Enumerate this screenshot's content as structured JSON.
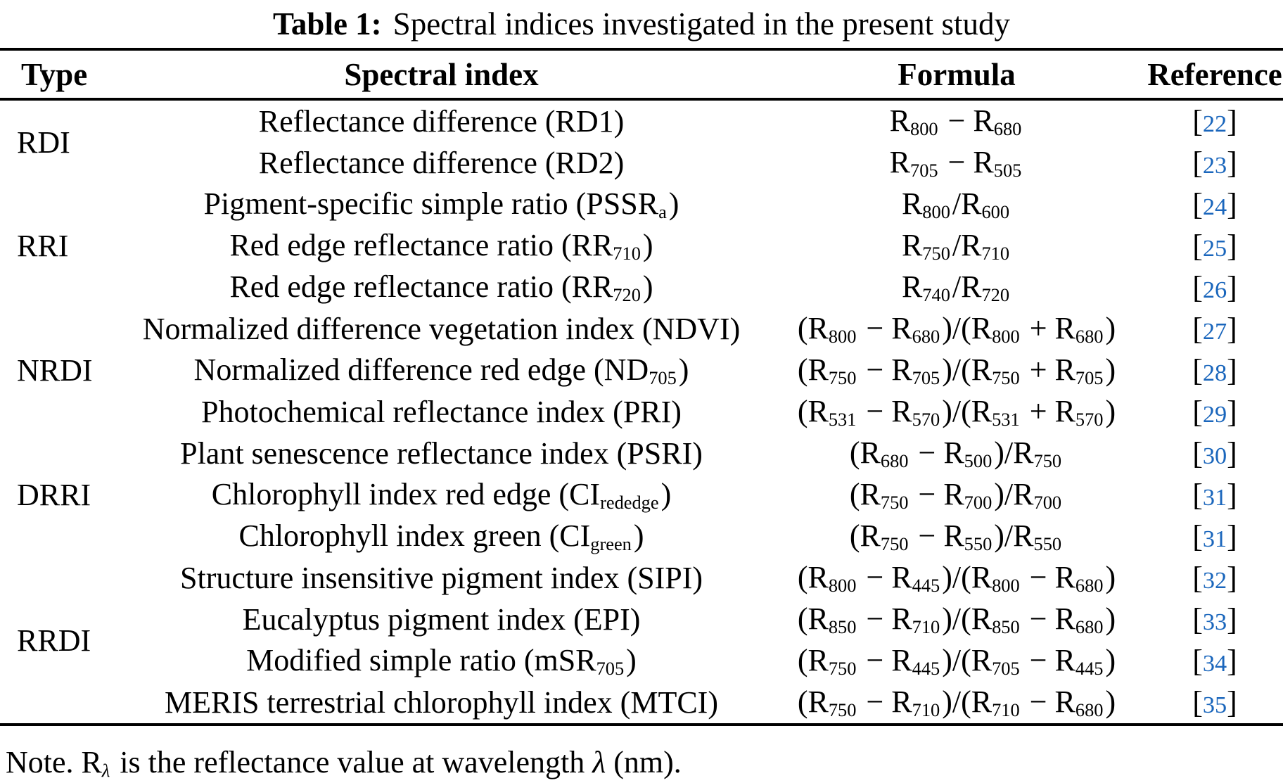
{
  "caption": {
    "label": "Table 1:",
    "text": "Spectral indices investigated in the present study"
  },
  "columns": [
    "Type",
    "Spectral index",
    "Formula",
    "Reference"
  ],
  "colors": {
    "citation_link": "#1a66bc",
    "text": "#000000",
    "rule": "#000000"
  },
  "groups": [
    {
      "type": "RDI",
      "rows": [
        {
          "name": [
            [
              "t",
              "Reflectance difference (RD1)"
            ]
          ],
          "formula": [
            [
              "t",
              "R"
            ],
            [
              "s",
              "800"
            ],
            [
              "t",
              " − R"
            ],
            [
              "s",
              "680"
            ]
          ],
          "cite": [
            [
              "t",
              "["
            ],
            [
              "r",
              "22"
            ],
            [
              "t",
              "]"
            ]
          ]
        },
        {
          "name": [
            [
              "t",
              "Reflectance difference (RD2)"
            ]
          ],
          "formula": [
            [
              "t",
              "R"
            ],
            [
              "s",
              "705"
            ],
            [
              "t",
              " − R"
            ],
            [
              "s",
              "505"
            ]
          ],
          "cite": [
            [
              "t",
              "["
            ],
            [
              "r",
              "23"
            ],
            [
              "t",
              "]"
            ]
          ]
        }
      ]
    },
    {
      "type": "RRI",
      "rows": [
        {
          "name": [
            [
              "t",
              "Pigment-specific simple ratio (PSSR"
            ],
            [
              "s",
              "a"
            ],
            [
              "t",
              ")"
            ]
          ],
          "formula": [
            [
              "t",
              "R"
            ],
            [
              "s",
              "800"
            ],
            [
              "t",
              "/R"
            ],
            [
              "s",
              "600"
            ]
          ],
          "cite": [
            [
              "t",
              "["
            ],
            [
              "r",
              "24"
            ],
            [
              "t",
              "]"
            ]
          ]
        },
        {
          "name": [
            [
              "t",
              "Red edge reflectance ratio (RR"
            ],
            [
              "s",
              "710"
            ],
            [
              "t",
              ")"
            ]
          ],
          "formula": [
            [
              "t",
              "R"
            ],
            [
              "s",
              "750"
            ],
            [
              "t",
              "/R"
            ],
            [
              "s",
              "710"
            ]
          ],
          "cite": [
            [
              "t",
              "["
            ],
            [
              "r",
              "25"
            ],
            [
              "t",
              "]"
            ]
          ]
        },
        {
          "name": [
            [
              "t",
              "Red edge reflectance ratio (RR"
            ],
            [
              "s",
              "720"
            ],
            [
              "t",
              ")"
            ]
          ],
          "formula": [
            [
              "t",
              "R"
            ],
            [
              "s",
              "740"
            ],
            [
              "t",
              "/R"
            ],
            [
              "s",
              "720"
            ]
          ],
          "cite": [
            [
              "t",
              "["
            ],
            [
              "r",
              "26"
            ],
            [
              "t",
              "]"
            ]
          ]
        }
      ]
    },
    {
      "type": "NRDI",
      "rows": [
        {
          "name": [
            [
              "t",
              "Normalized difference vegetation index (NDVI)"
            ]
          ],
          "formula": [
            [
              "t",
              "(R"
            ],
            [
              "s",
              "800"
            ],
            [
              "t",
              " − R"
            ],
            [
              "s",
              "680"
            ],
            [
              "t",
              ")/(R"
            ],
            [
              "s",
              "800"
            ],
            [
              "t",
              " + R"
            ],
            [
              "s",
              "680"
            ],
            [
              "t",
              ")"
            ]
          ],
          "cite": [
            [
              "t",
              "["
            ],
            [
              "r",
              "27"
            ],
            [
              "t",
              "]"
            ]
          ]
        },
        {
          "name": [
            [
              "t",
              "Normalized difference red edge (ND"
            ],
            [
              "s",
              "705"
            ],
            [
              "t",
              ")"
            ]
          ],
          "formula": [
            [
              "t",
              "(R"
            ],
            [
              "s",
              "750"
            ],
            [
              "t",
              " − R"
            ],
            [
              "s",
              "705"
            ],
            [
              "t",
              ")/(R"
            ],
            [
              "s",
              "750"
            ],
            [
              "t",
              " + R"
            ],
            [
              "s",
              "705"
            ],
            [
              "t",
              ")"
            ]
          ],
          "cite": [
            [
              "t",
              "["
            ],
            [
              "r",
              "28"
            ],
            [
              "t",
              "]"
            ]
          ]
        },
        {
          "name": [
            [
              "t",
              "Photochemical reflectance index (PRI)"
            ]
          ],
          "formula": [
            [
              "t",
              "(R"
            ],
            [
              "s",
              "531"
            ],
            [
              "t",
              " − R"
            ],
            [
              "s",
              "570"
            ],
            [
              "t",
              ")/(R"
            ],
            [
              "s",
              "531"
            ],
            [
              "t",
              " + R"
            ],
            [
              "s",
              "570"
            ],
            [
              "t",
              ")"
            ]
          ],
          "cite": [
            [
              "t",
              "["
            ],
            [
              "r",
              "29"
            ],
            [
              "t",
              "]"
            ]
          ]
        }
      ]
    },
    {
      "type": "DRRI",
      "rows": [
        {
          "name": [
            [
              "t",
              "Plant senescence reflectance index (PSRI)"
            ]
          ],
          "formula": [
            [
              "t",
              "(R"
            ],
            [
              "s",
              "680"
            ],
            [
              "t",
              " − R"
            ],
            [
              "s",
              "500"
            ],
            [
              "t",
              ")/R"
            ],
            [
              "s",
              "750"
            ]
          ],
          "cite": [
            [
              "t",
              "["
            ],
            [
              "r",
              "30"
            ],
            [
              "t",
              "]"
            ]
          ]
        },
        {
          "name": [
            [
              "t",
              "Chlorophyll index red edge (CI"
            ],
            [
              "s",
              "rededge"
            ],
            [
              "t",
              ")"
            ]
          ],
          "formula": [
            [
              "t",
              "(R"
            ],
            [
              "s",
              "750"
            ],
            [
              "t",
              " − R"
            ],
            [
              "s",
              "700"
            ],
            [
              "t",
              ")/R"
            ],
            [
              "s",
              "700"
            ]
          ],
          "cite": [
            [
              "t",
              "["
            ],
            [
              "r",
              "31"
            ],
            [
              "t",
              "]"
            ]
          ]
        },
        {
          "name": [
            [
              "t",
              "Chlorophyll index green (CI"
            ],
            [
              "s",
              "green"
            ],
            [
              "t",
              ")"
            ]
          ],
          "formula": [
            [
              "t",
              "(R"
            ],
            [
              "s",
              "750"
            ],
            [
              "t",
              " − R"
            ],
            [
              "s",
              "550"
            ],
            [
              "t",
              ")/R"
            ],
            [
              "s",
              "550"
            ]
          ],
          "cite": [
            [
              "t",
              "["
            ],
            [
              "r",
              "31"
            ],
            [
              "t",
              "]"
            ]
          ]
        }
      ]
    },
    {
      "type": "RRDI",
      "rows": [
        {
          "name": [
            [
              "t",
              "Structure insensitive pigment index (SIPI)"
            ]
          ],
          "formula": [
            [
              "t",
              "(R"
            ],
            [
              "s",
              "800"
            ],
            [
              "t",
              " − R"
            ],
            [
              "s",
              "445"
            ],
            [
              "t",
              ")/(R"
            ],
            [
              "s",
              "800"
            ],
            [
              "t",
              " − R"
            ],
            [
              "s",
              "680"
            ],
            [
              "t",
              ")"
            ]
          ],
          "cite": [
            [
              "t",
              "["
            ],
            [
              "r",
              "32"
            ],
            [
              "t",
              "]"
            ]
          ]
        },
        {
          "name": [
            [
              "t",
              "Eucalyptus pigment index (EPI)"
            ]
          ],
          "formula": [
            [
              "t",
              "(R"
            ],
            [
              "s",
              "850"
            ],
            [
              "t",
              " − R"
            ],
            [
              "s",
              "710"
            ],
            [
              "t",
              ")/(R"
            ],
            [
              "s",
              "850"
            ],
            [
              "t",
              " − R"
            ],
            [
              "s",
              "680"
            ],
            [
              "t",
              ")"
            ]
          ],
          "cite": [
            [
              "t",
              "["
            ],
            [
              "r",
              "33"
            ],
            [
              "t",
              "]"
            ]
          ]
        },
        {
          "name": [
            [
              "t",
              "Modified simple ratio (mSR"
            ],
            [
              "s",
              "705"
            ],
            [
              "t",
              ")"
            ]
          ],
          "formula": [
            [
              "t",
              "(R"
            ],
            [
              "s",
              "750"
            ],
            [
              "t",
              " − R"
            ],
            [
              "s",
              "445"
            ],
            [
              "t",
              ")/(R"
            ],
            [
              "s",
              "705"
            ],
            [
              "t",
              " − R"
            ],
            [
              "s",
              "445"
            ],
            [
              "t",
              ")"
            ]
          ],
          "cite": [
            [
              "t",
              "["
            ],
            [
              "r",
              "34"
            ],
            [
              "t",
              "]"
            ]
          ]
        },
        {
          "name": [
            [
              "t",
              "MERIS terrestrial chlorophyll index (MTCI)"
            ]
          ],
          "formula": [
            [
              "t",
              "(R"
            ],
            [
              "s",
              "750"
            ],
            [
              "t",
              " − R"
            ],
            [
              "s",
              "710"
            ],
            [
              "t",
              ")/(R"
            ],
            [
              "s",
              "710"
            ],
            [
              "t",
              " − R"
            ],
            [
              "s",
              "680"
            ],
            [
              "t",
              ")"
            ]
          ],
          "cite": [
            [
              "t",
              "["
            ],
            [
              "r",
              "35"
            ],
            [
              "t",
              "]"
            ]
          ]
        }
      ]
    }
  ],
  "note": {
    "parts": [
      [
        "t",
        "Note. R"
      ],
      [
        "si",
        "λ"
      ],
      [
        "t",
        " is the reflectance value at wavelength "
      ],
      [
        "i",
        "λ"
      ],
      [
        "t",
        " (nm)."
      ]
    ]
  }
}
